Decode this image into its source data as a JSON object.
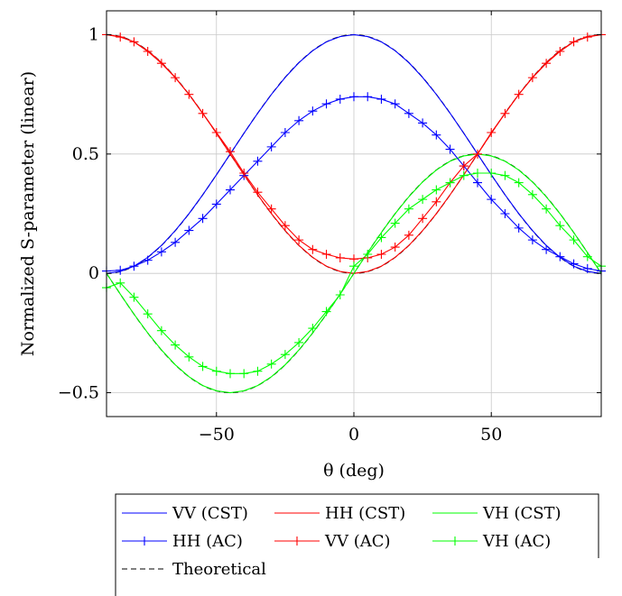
{
  "chart_data": {
    "type": "line",
    "xlabel": "θ (deg)",
    "ylabel": "Normalized S-parameter (linear)",
    "xlim": [
      -90,
      90
    ],
    "ylim": [
      -0.6,
      1.1
    ],
    "xticks": [
      -50,
      0,
      50
    ],
    "xtick_labels": [
      "−50",
      "0",
      "50"
    ],
    "yticks": [
      -0.5,
      0,
      0.5,
      1
    ],
    "ytick_labels": [
      "−0.5",
      "0",
      "0.5",
      "1"
    ],
    "grid": true,
    "legend_position": "bottom",
    "series": [
      {
        "name": "VV (CST)",
        "color": "#0000ff",
        "marker": "none",
        "dash": "solid",
        "x": [
          -90,
          -85,
          -80,
          -75,
          -70,
          -65,
          -60,
          -55,
          -50,
          -45,
          -40,
          -35,
          -30,
          -25,
          -20,
          -15,
          -10,
          -5,
          0,
          5,
          10,
          15,
          20,
          25,
          30,
          35,
          40,
          45,
          50,
          55,
          60,
          65,
          70,
          75,
          80,
          85,
          90
        ],
        "y": [
          0,
          0.008,
          0.03,
          0.067,
          0.117,
          0.179,
          0.25,
          0.329,
          0.413,
          0.5,
          0.587,
          0.671,
          0.75,
          0.821,
          0.883,
          0.933,
          0.97,
          0.992,
          1,
          0.992,
          0.97,
          0.933,
          0.883,
          0.821,
          0.75,
          0.671,
          0.587,
          0.5,
          0.413,
          0.329,
          0.25,
          0.179,
          0.117,
          0.067,
          0.03,
          0.008,
          0
        ]
      },
      {
        "name": "HH (CST)",
        "color": "#ff0000",
        "marker": "none",
        "dash": "solid",
        "x": [
          -90,
          -85,
          -80,
          -75,
          -70,
          -65,
          -60,
          -55,
          -50,
          -45,
          -40,
          -35,
          -30,
          -25,
          -20,
          -15,
          -10,
          -5,
          0,
          5,
          10,
          15,
          20,
          25,
          30,
          35,
          40,
          45,
          50,
          55,
          60,
          65,
          70,
          75,
          80,
          85,
          90
        ],
        "y": [
          1,
          0.992,
          0.97,
          0.933,
          0.883,
          0.821,
          0.75,
          0.671,
          0.587,
          0.5,
          0.413,
          0.329,
          0.25,
          0.179,
          0.117,
          0.067,
          0.03,
          0.008,
          0,
          0.008,
          0.03,
          0.067,
          0.117,
          0.179,
          0.25,
          0.329,
          0.413,
          0.5,
          0.587,
          0.671,
          0.75,
          0.821,
          0.883,
          0.933,
          0.97,
          0.992,
          1
        ]
      },
      {
        "name": "VH (CST)",
        "color": "#00ff00",
        "marker": "none",
        "dash": "solid",
        "x": [
          -90,
          -85,
          -80,
          -75,
          -70,
          -65,
          -60,
          -55,
          -50,
          -45,
          -40,
          -35,
          -30,
          -25,
          -20,
          -15,
          -10,
          -5,
          0,
          5,
          10,
          15,
          20,
          25,
          30,
          35,
          40,
          45,
          50,
          55,
          60,
          65,
          70,
          75,
          80,
          85,
          90
        ],
        "y": [
          0,
          -0.087,
          -0.171,
          -0.25,
          -0.321,
          -0.383,
          -0.433,
          -0.47,
          -0.492,
          -0.5,
          -0.492,
          -0.47,
          -0.433,
          -0.383,
          -0.321,
          -0.25,
          -0.171,
          -0.087,
          0,
          0.087,
          0.171,
          0.25,
          0.321,
          0.383,
          0.433,
          0.47,
          0.492,
          0.5,
          0.492,
          0.47,
          0.433,
          0.383,
          0.321,
          0.25,
          0.171,
          0.087,
          0
        ]
      },
      {
        "name": "HH (AC)",
        "color": "#0000ff",
        "marker": "+",
        "dash": "solid",
        "x": [
          -90,
          -85,
          -80,
          -75,
          -70,
          -65,
          -60,
          -55,
          -50,
          -45,
          -40,
          -35,
          -30,
          -25,
          -20,
          -15,
          -10,
          -5,
          0,
          5,
          10,
          15,
          20,
          25,
          30,
          35,
          40,
          45,
          50,
          55,
          60,
          65,
          70,
          75,
          80,
          85,
          90
        ],
        "y": [
          0.01,
          0.013,
          0.03,
          0.055,
          0.09,
          0.13,
          0.18,
          0.23,
          0.29,
          0.35,
          0.41,
          0.47,
          0.53,
          0.59,
          0.64,
          0.68,
          0.71,
          0.73,
          0.74,
          0.74,
          0.73,
          0.71,
          0.67,
          0.63,
          0.58,
          0.52,
          0.45,
          0.38,
          0.31,
          0.25,
          0.19,
          0.14,
          0.1,
          0.07,
          0.04,
          0.02,
          0.01
        ]
      },
      {
        "name": "VV (AC)",
        "color": "#ff0000",
        "marker": "+",
        "dash": "solid",
        "x": [
          -90,
          -85,
          -80,
          -75,
          -70,
          -65,
          -60,
          -55,
          -50,
          -45,
          -40,
          -35,
          -30,
          -25,
          -20,
          -15,
          -10,
          -5,
          0,
          5,
          10,
          15,
          20,
          25,
          30,
          35,
          40,
          45,
          50,
          55,
          60,
          65,
          70,
          75,
          80,
          85,
          90
        ],
        "y": [
          1,
          0.99,
          0.97,
          0.93,
          0.88,
          0.82,
          0.75,
          0.67,
          0.59,
          0.51,
          0.42,
          0.34,
          0.27,
          0.2,
          0.14,
          0.1,
          0.08,
          0.065,
          0.06,
          0.065,
          0.08,
          0.11,
          0.16,
          0.23,
          0.3,
          0.38,
          0.45,
          0.5,
          0.59,
          0.67,
          0.75,
          0.82,
          0.88,
          0.93,
          0.97,
          0.99,
          1
        ]
      },
      {
        "name": "VH (AC)",
        "color": "#00ff00",
        "marker": "+",
        "dash": "solid",
        "x": [
          -90,
          -85,
          -80,
          -75,
          -70,
          -65,
          -60,
          -55,
          -50,
          -45,
          -40,
          -35,
          -30,
          -25,
          -20,
          -15,
          -10,
          -5,
          0,
          5,
          10,
          15,
          20,
          25,
          30,
          35,
          40,
          45,
          50,
          55,
          60,
          65,
          70,
          75,
          80,
          85,
          90
        ],
        "y": [
          -0.06,
          -0.04,
          -0.1,
          -0.17,
          -0.24,
          -0.3,
          -0.35,
          -0.39,
          -0.41,
          -0.42,
          -0.42,
          -0.41,
          -0.38,
          -0.34,
          -0.29,
          -0.23,
          -0.16,
          -0.09,
          0.03,
          0.08,
          0.15,
          0.21,
          0.27,
          0.31,
          0.35,
          0.38,
          0.41,
          0.42,
          0.42,
          0.41,
          0.38,
          0.33,
          0.27,
          0.2,
          0.14,
          0.07,
          0.03
        ]
      },
      {
        "name": "Theoretical",
        "color": "#000000",
        "marker": "none",
        "dash": "dashed",
        "curves": [
          "cos2",
          "sin2",
          "sincos"
        ]
      }
    ]
  }
}
